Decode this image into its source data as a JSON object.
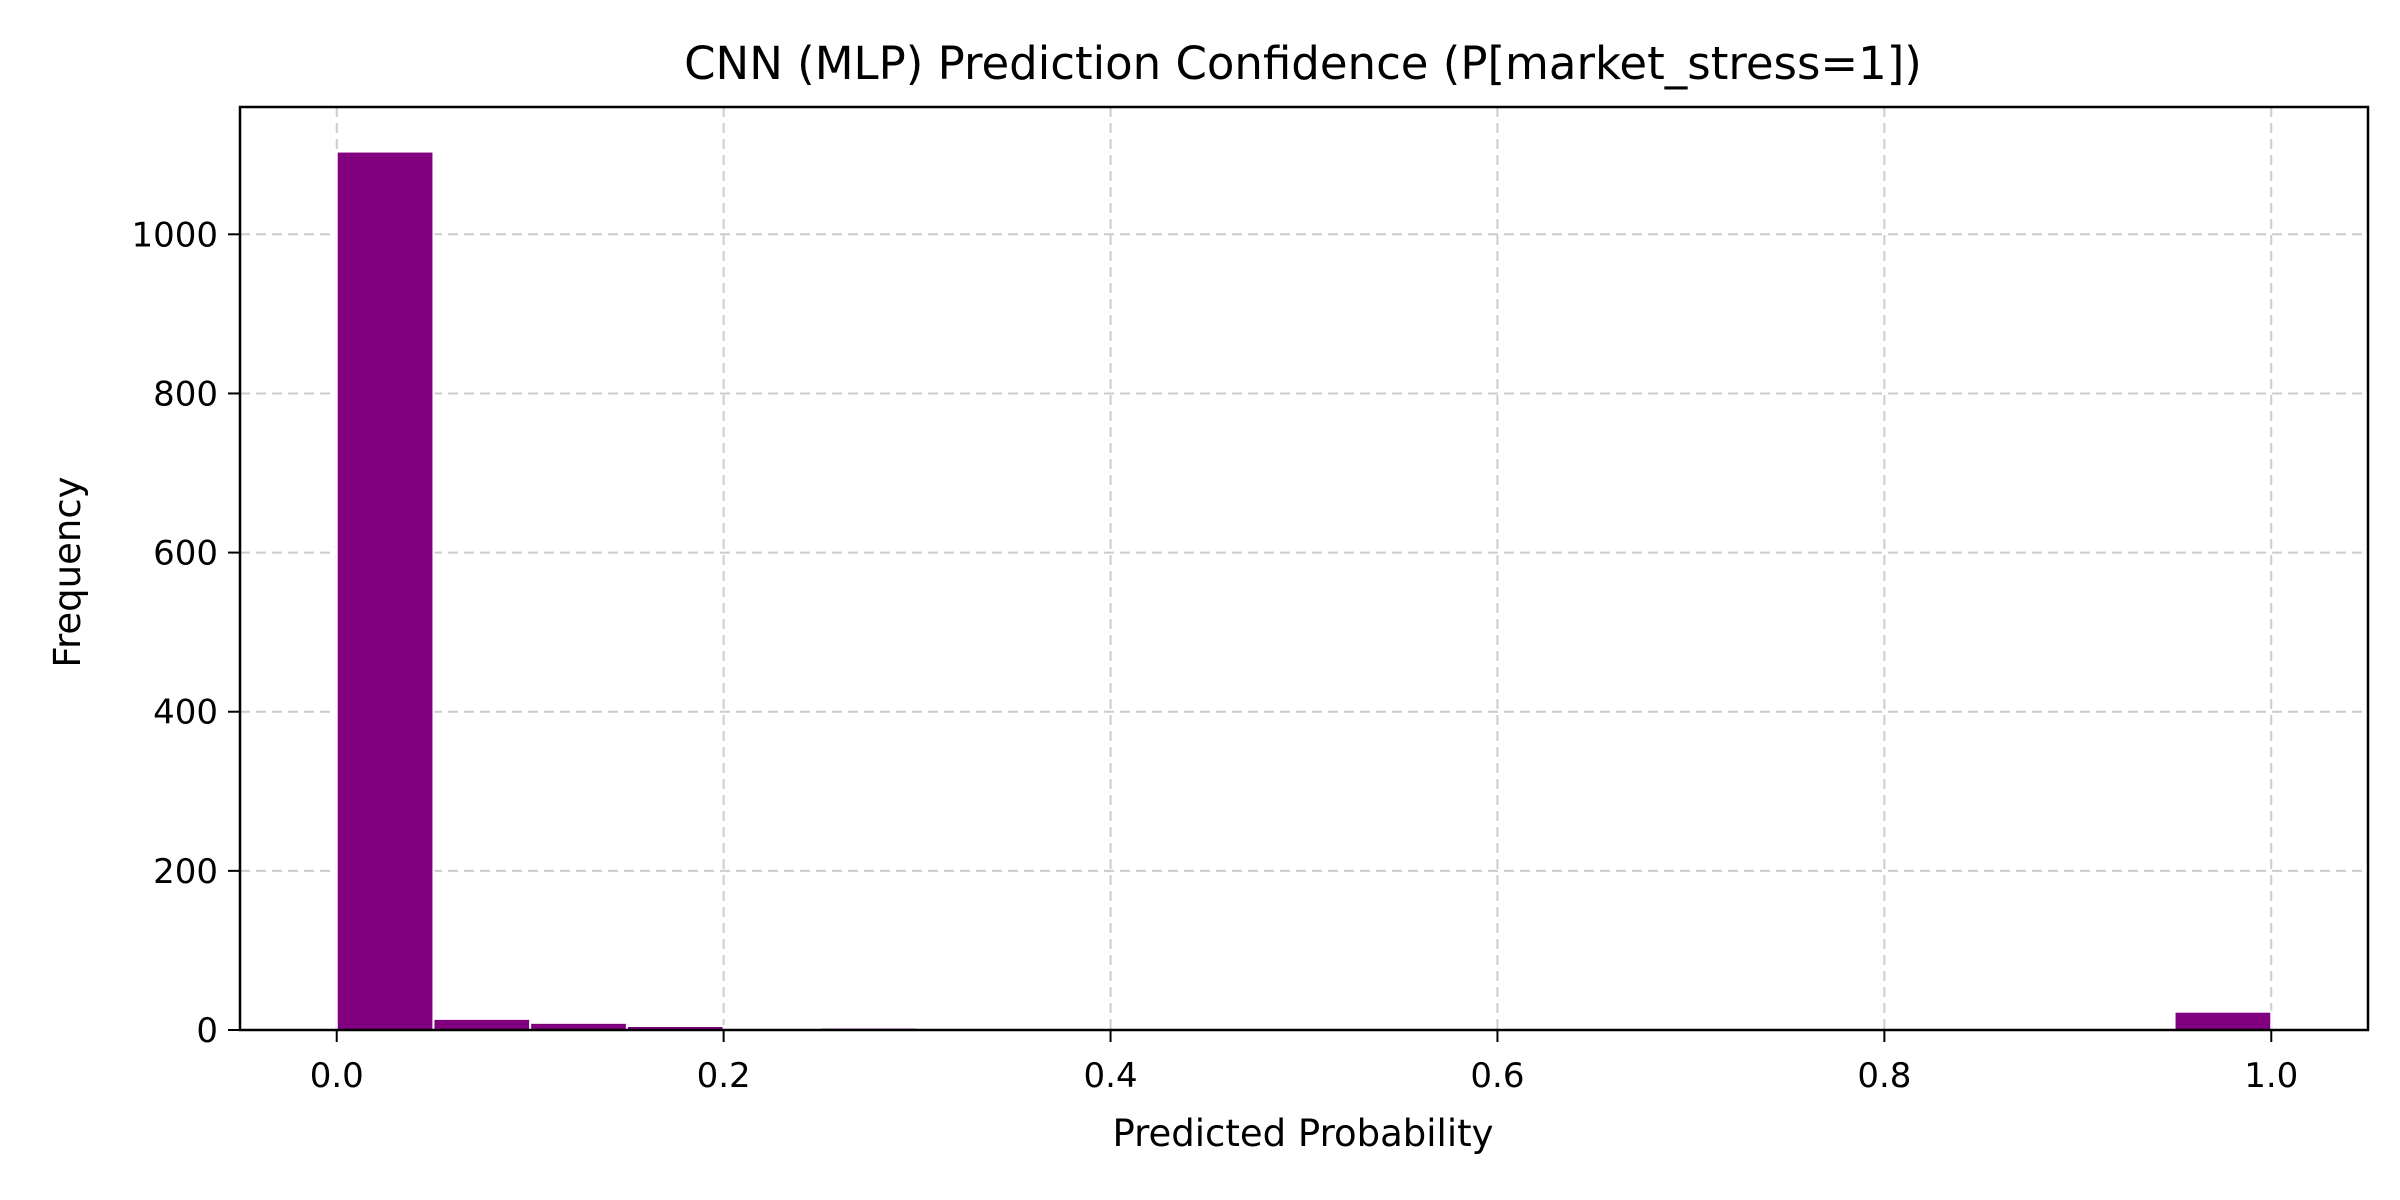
{
  "chart_data": {
    "type": "bar",
    "subtype": "histogram",
    "title": "CNN (MLP) Prediction Confidence (P[market_stress=1])",
    "xlabel": "Predicted Probability",
    "ylabel": "Frequency",
    "xlim": [
      -0.05,
      1.05
    ],
    "ylim": [
      0,
      1160
    ],
    "xticks": [
      0.0,
      0.2,
      0.4,
      0.6,
      0.8,
      1.0
    ],
    "xtick_labels": [
      "0.0",
      "0.2",
      "0.4",
      "0.6",
      "0.8",
      "1.0"
    ],
    "yticks": [
      0,
      200,
      400,
      600,
      800,
      1000
    ],
    "ytick_labels": [
      "0",
      "200",
      "400",
      "600",
      "800",
      "1000"
    ],
    "bin_edges": [
      0.0,
      0.05,
      0.1,
      0.15,
      0.2,
      0.25,
      0.3,
      0.35,
      0.4,
      0.45,
      0.5,
      0.55,
      0.6,
      0.65,
      0.7,
      0.75,
      0.8,
      0.85,
      0.9,
      0.95,
      1.0
    ],
    "values": [
      1104,
      14,
      9,
      5,
      1,
      3,
      0,
      0,
      0,
      0,
      0,
      0,
      0,
      0,
      0,
      0,
      0,
      0,
      0,
      23
    ],
    "bar_color": "#800080",
    "edge_color": "#ffffff",
    "grid": true,
    "legend": "none"
  }
}
